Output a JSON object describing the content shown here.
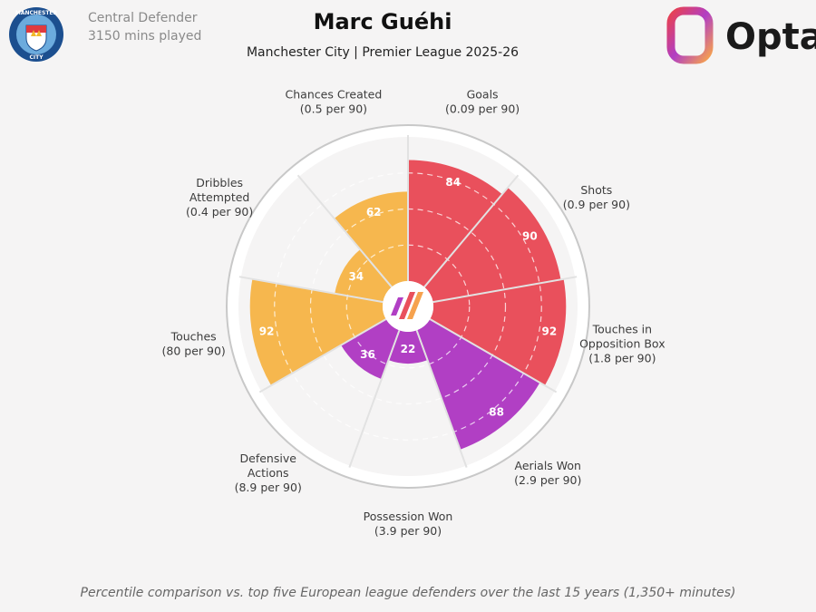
{
  "header": {
    "title": "Marc Guéhi",
    "subtitle": "Manchester City | Premier League 2025-26",
    "position": "Central Defender",
    "minutes": "3150 mins played"
  },
  "crest": {
    "top_text": "MANCHESTER",
    "bottom_text": "CITY"
  },
  "brand": {
    "name": "Opta"
  },
  "footer": {
    "note": "Percentile comparison vs. top five European league defenders over the last 15 years (1,350+ minutes)"
  },
  "colors": {
    "attacking": "#e9505c",
    "aerial_defensive": "#b13fc4",
    "possession": "#f6b74e",
    "background": "#f5f4f4",
    "ring": "#c8c8c8",
    "empty": "#f5f4f4"
  },
  "chart_data": {
    "type": "pie",
    "subtype": "radar-pizza",
    "value_type": "percentile",
    "rlim": [
      0,
      100
    ],
    "grid": true,
    "categories": [
      {
        "label": "Goals",
        "sub": "(0.09 per 90)",
        "value": 84,
        "group": "attacking"
      },
      {
        "label": "Shots",
        "sub": "(0.9 per 90)",
        "value": 90,
        "group": "attacking"
      },
      {
        "label": "Touches in Opposition Box",
        "label_lines": [
          "Touches in",
          "Opposition Box"
        ],
        "sub": "(1.8 per 90)",
        "value": 92,
        "group": "attacking"
      },
      {
        "label": "Aerials Won",
        "sub": "(2.9 per 90)",
        "value": 88,
        "group": "aerial_defensive"
      },
      {
        "label": "Possession Won",
        "sub": "(3.9 per 90)",
        "value": 22,
        "group": "aerial_defensive"
      },
      {
        "label": "Defensive Actions",
        "label_lines": [
          "Defensive",
          "Actions"
        ],
        "sub": "(8.9 per 90)",
        "value": 36,
        "group": "aerial_defensive"
      },
      {
        "label": "Touches",
        "sub": "(80 per 90)",
        "value": 92,
        "group": "possession"
      },
      {
        "label": "Dribbles Attempted",
        "label_lines": [
          "Dribbles",
          "Attempted"
        ],
        "sub": "(0.4 per 90)",
        "value": 34,
        "group": "possession"
      },
      {
        "label": "Chances Created",
        "sub": "(0.5 per 90)",
        "value": 62,
        "group": "possession"
      }
    ]
  }
}
